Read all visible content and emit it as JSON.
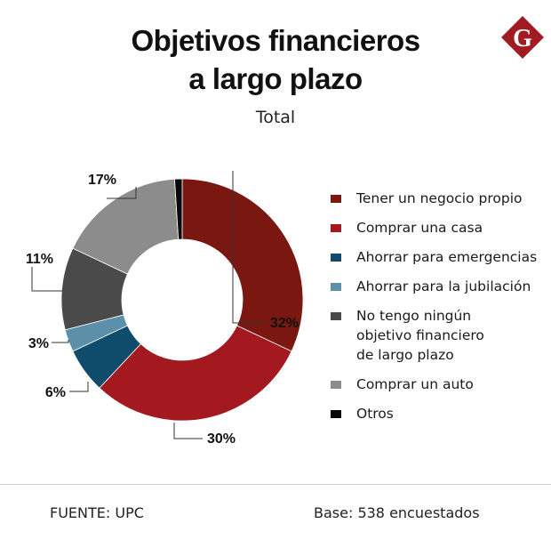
{
  "header": {
    "title_line1": "Objetivos financieros",
    "title_line2": "a largo plazo",
    "subtitle": "Total"
  },
  "logo": {
    "letter": "G",
    "color": "#a01b22"
  },
  "chart_data": {
    "type": "pie",
    "donut": true,
    "title": "Objetivos financieros a largo plazo",
    "subtitle": "Total",
    "unit": "%",
    "categories": [
      "Tener un negocio propio",
      "Comprar una casa",
      "Ahorrar para emergencias",
      "Ahorrar para la jubilación",
      "No tengo ningún objetivo financiero de largo plazo",
      "Comprar un auto",
      "Otros"
    ],
    "values": [
      32,
      30,
      6,
      3,
      11,
      17,
      1
    ],
    "labels": [
      "32%",
      "30%",
      "6%",
      "3%",
      "11%",
      "17%",
      ""
    ],
    "colors": [
      "#7a1711",
      "#a3191f",
      "#0f4c6b",
      "#5b8faa",
      "#4a4a4a",
      "#8c8c8c",
      "#0a0a0a"
    ],
    "legend_position": "right"
  },
  "legend": [
    {
      "label": "Tener un negocio propio",
      "color": "#7a1711"
    },
    {
      "label": "Comprar una casa",
      "color": "#a3191f"
    },
    {
      "label": "Ahorrar para emergencias",
      "color": "#0f4c6b"
    },
    {
      "label": "Ahorrar para la jubilación",
      "color": "#5b8faa"
    },
    {
      "label": "No tengo ningún\nobjetivo financiero\nde largo plazo",
      "color": "#4a4a4a"
    },
    {
      "label": "Comprar un auto",
      "color": "#8c8c8c"
    },
    {
      "label": "Otros",
      "color": "#0a0a0a"
    }
  ],
  "footer": {
    "source": "FUENTE: UPC",
    "base": "Base: 538 encuestados"
  }
}
